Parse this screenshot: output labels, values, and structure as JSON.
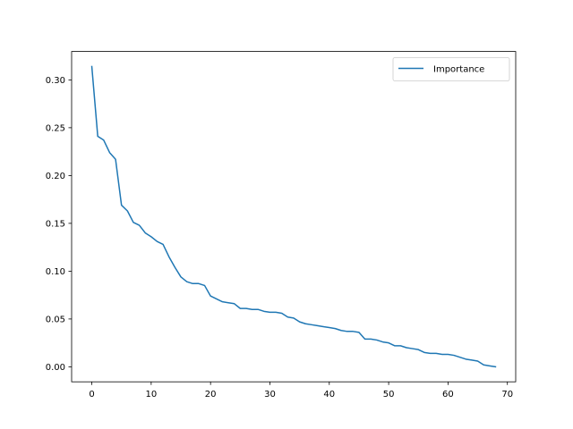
{
  "chart_data": {
    "type": "line",
    "title": "",
    "xlabel": "",
    "ylabel": "",
    "xlim": [
      -3.4,
      71.4
    ],
    "ylim": [
      -0.0157,
      0.3297
    ],
    "xticks": [
      0,
      10,
      20,
      30,
      40,
      50,
      60,
      70
    ],
    "yticks": [
      0.0,
      0.05,
      0.1,
      0.15,
      0.2,
      0.25,
      0.3
    ],
    "xtick_labels": [
      "0",
      "10",
      "20",
      "30",
      "40",
      "50",
      "60",
      "70"
    ],
    "ytick_labels": [
      "0.00",
      "0.05",
      "0.10",
      "0.15",
      "0.20",
      "0.25",
      "0.30"
    ],
    "grid": false,
    "legend_position": "top-right",
    "series": [
      {
        "name": "Importance",
        "color": "#1f77b4",
        "x": [
          0,
          1,
          2,
          3,
          4,
          5,
          6,
          7,
          8,
          9,
          10,
          11,
          12,
          13,
          14,
          15,
          16,
          17,
          18,
          19,
          20,
          21,
          22,
          23,
          24,
          25,
          26,
          27,
          28,
          29,
          30,
          31,
          32,
          33,
          34,
          35,
          36,
          37,
          38,
          39,
          40,
          41,
          42,
          43,
          44,
          45,
          46,
          47,
          48,
          49,
          50,
          51,
          52,
          53,
          54,
          55,
          56,
          57,
          58,
          59,
          60,
          61,
          62,
          63,
          64,
          65,
          66,
          67,
          68
        ],
        "values": [
          0.314,
          0.241,
          0.237,
          0.224,
          0.217,
          0.169,
          0.163,
          0.151,
          0.148,
          0.14,
          0.136,
          0.131,
          0.128,
          0.115,
          0.104,
          0.094,
          0.089,
          0.087,
          0.087,
          0.085,
          0.074,
          0.071,
          0.068,
          0.067,
          0.066,
          0.061,
          0.061,
          0.06,
          0.06,
          0.058,
          0.057,
          0.057,
          0.056,
          0.052,
          0.051,
          0.047,
          0.045,
          0.044,
          0.043,
          0.042,
          0.041,
          0.04,
          0.038,
          0.037,
          0.037,
          0.036,
          0.029,
          0.029,
          0.028,
          0.026,
          0.025,
          0.022,
          0.022,
          0.02,
          0.019,
          0.018,
          0.015,
          0.014,
          0.014,
          0.013,
          0.013,
          0.012,
          0.01,
          0.008,
          0.007,
          0.006,
          0.002,
          0.001,
          0.0
        ]
      }
    ]
  }
}
